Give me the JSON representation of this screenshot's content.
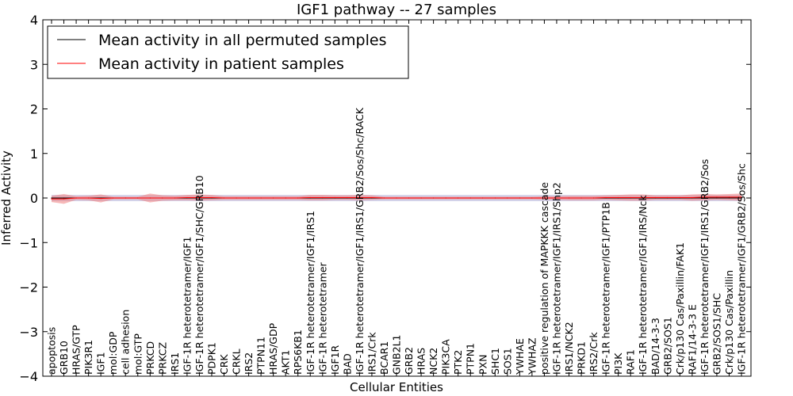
{
  "chart_data": {
    "type": "line",
    "title": "IGF1 pathway -- 27 samples",
    "xlabel": "Cellular Entities",
    "ylabel": "Inferred Activity",
    "ylim": [
      -4,
      4
    ],
    "yticks": [
      -4,
      -3,
      -2,
      -1,
      0,
      1,
      2,
      3,
      4
    ],
    "ytick_labels": [
      "−4",
      "−3",
      "−2",
      "−1",
      "0",
      "1",
      "2",
      "3",
      "4"
    ],
    "grid": false,
    "legend_location": "top-left",
    "categories": [
      "apoptosis",
      "GRB10",
      "HRAS/GTP",
      "PIK3R1",
      "IGF1",
      "mol:GDP",
      "cell adhesion",
      "mol:GTP",
      "PRKCD",
      "PRKCZ",
      "IRS1",
      "IGF-1R heterotetramer/IGF1",
      "IGF-1R heterotetramer/IGF1/SHC/GRB10",
      "PDPK1",
      "CRK",
      "CRKL",
      "IRS2",
      "PTPN11",
      "HRAS/GDP",
      "AKT1",
      "RPS6KB1",
      "IGF-1R heterotetramer/IGF1/IRS1",
      "IGF-1R heterotetramer",
      "IGF1R",
      "BAD",
      "IGF-1R heterotetramer/IGF1/IRS1/GRB2/Sos/Shc/RACK",
      "IRS1/Crk",
      "BCAR1",
      "GNB2L1",
      "GRB2",
      "HRAS",
      "NCK2",
      "PIK3CA",
      "PTK2",
      "PTPN1",
      "PXN",
      "SHC1",
      "SOS1",
      "YWHAE",
      "YWHAZ",
      "positive regulation of MAPKKK cascade",
      "IGF-1R heterotetramer/IGF1/IRS1/Shp2",
      "IRS1/NCK2",
      "PRKD1",
      "IRS2/Crk",
      "IGF-1R heterotetramer/IGF1/PTP1B",
      "PI3K",
      "RAF1",
      "IGF-1R heterotetramer/IGF1/IRS/Nck",
      "BAD/14-3-3",
      "GRB2/SOS1",
      "Crk/p130 Cas/Paxillin/FAK1",
      "RAF1/14-3-3 E",
      "IGF-1R heterotetramer/IGF1/IRS1/GRB2/Sos",
      "GRB2/SOS1/SHC",
      "Crk/p130 Cas/Paxillin",
      "IGF-1R heterotetramer/IGF1/GRB2/Sos/Shc"
    ],
    "series": [
      {
        "name": "Mean activity in all permuted samples",
        "color": "#000000",
        "band_color": "#7f7fbf",
        "values": [
          0,
          0,
          0,
          0,
          0,
          0,
          0,
          0,
          0,
          0,
          0,
          0,
          0,
          0,
          0,
          0,
          0,
          0,
          0,
          0,
          0,
          0,
          0,
          0,
          0,
          0,
          0,
          0,
          0,
          0,
          0,
          0,
          0,
          0,
          0,
          0,
          0,
          0,
          0,
          0,
          0,
          0,
          0,
          0,
          0,
          0,
          0,
          0,
          0,
          0,
          0,
          0,
          0,
          0,
          0,
          0,
          0
        ],
        "band": [
          0.07,
          0.07,
          0.07,
          0.07,
          0.07,
          0.07,
          0.07,
          0.07,
          0.07,
          0.07,
          0.07,
          0.07,
          0.07,
          0.07,
          0.07,
          0.07,
          0.07,
          0.07,
          0.07,
          0.07,
          0.07,
          0.07,
          0.07,
          0.07,
          0.07,
          0.07,
          0.07,
          0.07,
          0.07,
          0.07,
          0.07,
          0.07,
          0.07,
          0.07,
          0.07,
          0.07,
          0.07,
          0.07,
          0.07,
          0.07,
          0.07,
          0.07,
          0.07,
          0.07,
          0.07,
          0.07,
          0.07,
          0.07,
          0.07,
          0.07,
          0.07,
          0.07,
          0.07,
          0.07,
          0.07,
          0.07,
          0.07
        ]
      },
      {
        "name": "Mean activity in patient samples",
        "color": "#ff0000",
        "band_color": "#f08080",
        "values": [
          -0.02,
          -0.02,
          0,
          0,
          -0.01,
          0,
          0,
          0,
          0,
          0,
          0,
          0.01,
          0.01,
          0.01,
          0,
          0,
          0,
          0,
          0,
          0,
          0,
          0.01,
          0.01,
          0.01,
          0.01,
          0.01,
          0.01,
          0,
          0,
          0,
          0,
          0,
          0,
          0,
          0,
          0,
          0,
          0,
          0,
          0,
          0,
          0,
          0,
          0,
          0,
          0.01,
          0.01,
          0.01,
          0.01,
          0.01,
          0.01,
          0.01,
          0.01,
          0.02,
          0.02,
          0.02,
          0.02
        ],
        "band": [
          0.07,
          0.11,
          0.04,
          0.05,
          0.09,
          0.03,
          0.03,
          0.03,
          0.1,
          0.06,
          0.05,
          0.06,
          0.07,
          0.06,
          0.04,
          0.04,
          0.04,
          0.04,
          0.04,
          0.04,
          0.04,
          0.06,
          0.06,
          0.05,
          0.05,
          0.06,
          0.05,
          0.03,
          0.03,
          0.03,
          0.03,
          0.03,
          0.03,
          0.03,
          0.03,
          0.03,
          0.03,
          0.03,
          0.03,
          0.03,
          0.04,
          0.04,
          0.05,
          0.05,
          0.05,
          0.05,
          0.06,
          0.07,
          0.07,
          0.05,
          0.05,
          0.05,
          0.07,
          0.07,
          0.06,
          0.07,
          0.08
        ]
      }
    ]
  }
}
